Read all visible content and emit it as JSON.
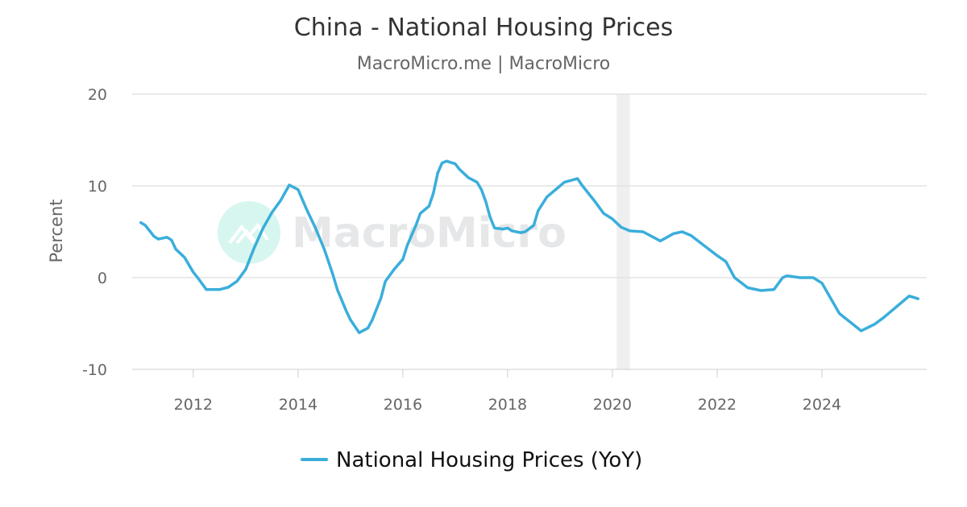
{
  "chart_data": {
    "type": "line",
    "title": "China - National Housing Prices",
    "subtitle": "MacroMicro.me | MacroMicro",
    "xlabel": "",
    "ylabel": "Percent",
    "ylim": [
      -10,
      20
    ],
    "yticks": [
      "20",
      "10",
      "0",
      "-10"
    ],
    "xlim": [
      "2010-11",
      "2026-01"
    ],
    "xticks": [
      "2012",
      "2014",
      "2016",
      "2018",
      "2020",
      "2022",
      "2024"
    ],
    "grid": true,
    "legend": "bottom-center",
    "shaded_band": {
      "start": "2020-02",
      "end": "2020-05",
      "color": "#efefef"
    },
    "watermark": "MacroMicro",
    "series": [
      {
        "name": "National Housing Prices (YoY)",
        "color": "#3aaedb",
        "points": [
          [
            "2011-01",
            6.0
          ],
          [
            "2011-02",
            5.7
          ],
          [
            "2011-04",
            4.5
          ],
          [
            "2011-05",
            4.2
          ],
          [
            "2011-07",
            4.4
          ],
          [
            "2011-08",
            4.1
          ],
          [
            "2011-09",
            3.1
          ],
          [
            "2011-11",
            2.2
          ],
          [
            "2012-01",
            0.6
          ],
          [
            "2012-02",
            0.0
          ],
          [
            "2012-04",
            -1.3
          ],
          [
            "2012-07",
            -1.3
          ],
          [
            "2012-09",
            -1.05
          ],
          [
            "2012-11",
            -0.4
          ],
          [
            "2013-01",
            0.9
          ],
          [
            "2013-03",
            3.3
          ],
          [
            "2013-05",
            5.4
          ],
          [
            "2013-07",
            7.1
          ],
          [
            "2013-09",
            8.4
          ],
          [
            "2013-11",
            10.1
          ],
          [
            "2014-01",
            9.6
          ],
          [
            "2014-03",
            7.4
          ],
          [
            "2014-05",
            5.4
          ],
          [
            "2014-07",
            3.1
          ],
          [
            "2014-09",
            0.3
          ],
          [
            "2014-10",
            -1.3
          ],
          [
            "2014-12",
            -3.6
          ],
          [
            "2015-01",
            -4.6
          ],
          [
            "2015-03",
            -6.0
          ],
          [
            "2015-05",
            -5.5
          ],
          [
            "2015-06",
            -4.6
          ],
          [
            "2015-08",
            -2.2
          ],
          [
            "2015-09",
            -0.4
          ],
          [
            "2015-11",
            0.9
          ],
          [
            "2016-01",
            2.0
          ],
          [
            "2016-02",
            3.5
          ],
          [
            "2016-04",
            5.7
          ],
          [
            "2016-05",
            7.0
          ],
          [
            "2016-07",
            7.8
          ],
          [
            "2016-08",
            9.2
          ],
          [
            "2016-09",
            11.4
          ],
          [
            "2016-10",
            12.5
          ],
          [
            "2016-11",
            12.7
          ],
          [
            "2017-01",
            12.4
          ],
          [
            "2017-02",
            11.8
          ],
          [
            "2017-04",
            10.9
          ],
          [
            "2017-06",
            10.4
          ],
          [
            "2017-07",
            9.6
          ],
          [
            "2017-08",
            8.3
          ],
          [
            "2017-09",
            6.6
          ],
          [
            "2017-10",
            5.4
          ],
          [
            "2017-12",
            5.3
          ],
          [
            "2018-01",
            5.4
          ],
          [
            "2018-02",
            5.1
          ],
          [
            "2018-04",
            4.9
          ],
          [
            "2018-05",
            5.0
          ],
          [
            "2018-07",
            5.7
          ],
          [
            "2018-08",
            7.3
          ],
          [
            "2018-10",
            8.8
          ],
          [
            "2018-12",
            9.6
          ],
          [
            "2019-02",
            10.4
          ],
          [
            "2019-05",
            10.8
          ],
          [
            "2019-06",
            10.1
          ],
          [
            "2019-08",
            8.9
          ],
          [
            "2019-09",
            8.3
          ],
          [
            "2019-11",
            7.0
          ],
          [
            "2020-01",
            6.4
          ],
          [
            "2020-03",
            5.5
          ],
          [
            "2020-05",
            5.1
          ],
          [
            "2020-08",
            5.0
          ],
          [
            "2020-10",
            4.5
          ],
          [
            "2020-12",
            4.0
          ],
          [
            "2021-03",
            4.8
          ],
          [
            "2021-05",
            5.0
          ],
          [
            "2021-07",
            4.6
          ],
          [
            "2021-10",
            3.5
          ],
          [
            "2022-01",
            2.4
          ],
          [
            "2022-03",
            1.75
          ],
          [
            "2022-05",
            0.0
          ],
          [
            "2022-08",
            -1.1
          ],
          [
            "2022-11",
            -1.4
          ],
          [
            "2023-02",
            -1.3
          ],
          [
            "2023-04",
            0.0
          ],
          [
            "2023-05",
            0.2
          ],
          [
            "2023-08",
            0.0
          ],
          [
            "2023-11",
            0.0
          ],
          [
            "2024-01",
            -0.6
          ],
          [
            "2024-05",
            -3.9
          ],
          [
            "2024-10",
            -5.8
          ],
          [
            "2025-01",
            -5.1
          ],
          [
            "2025-03",
            -4.4
          ],
          [
            "2025-06",
            -3.2
          ],
          [
            "2025-09",
            -2.0
          ],
          [
            "2025-11",
            -2.3
          ]
        ]
      }
    ]
  }
}
